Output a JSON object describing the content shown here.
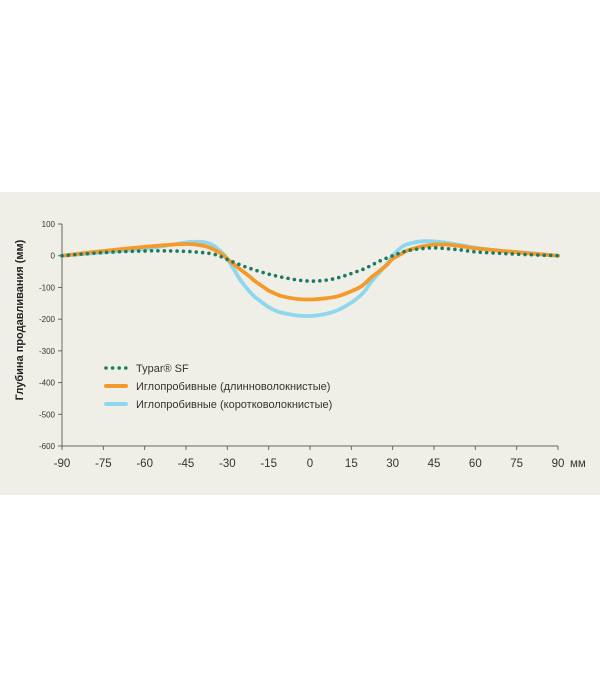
{
  "chart_data": {
    "type": "line",
    "ylabel": "Глубина продавливания (мм)",
    "xlabel": "",
    "x_unit": "мм",
    "xlim": [
      -90,
      90
    ],
    "ylim": [
      -600,
      100
    ],
    "x_ticks": [
      "-90",
      "-75",
      "-60",
      "-45",
      "-30",
      "-15",
      "0",
      "15",
      "30",
      "45",
      "60",
      "75",
      "90"
    ],
    "y_ticks": [
      "100",
      "0",
      "-100",
      "-200",
      "-300",
      "-400",
      "-500",
      "-600"
    ],
    "grid": false,
    "legend_position": "bottom-left",
    "background": "#efefe7",
    "series": [
      {
        "name": "Typar® SF",
        "style": "dotted",
        "color": "#1a7a63",
        "x": [
          -90,
          -75,
          -60,
          -50,
          -42,
          -35,
          -30,
          -25,
          -20,
          -15,
          -10,
          -5,
          0,
          5,
          10,
          15,
          20,
          25,
          30,
          35,
          40,
          45,
          50,
          55,
          60,
          70,
          80,
          90
        ],
        "y": [
          0,
          10,
          15,
          15,
          12,
          5,
          -12,
          -30,
          -45,
          -58,
          -68,
          -76,
          -80,
          -78,
          -70,
          -56,
          -40,
          -18,
          0,
          15,
          22,
          25,
          22,
          18,
          12,
          7,
          3,
          0
        ]
      },
      {
        "name": "Иглопробивные (длинноволокнистые)",
        "style": "solid",
        "color": "#f39a2b",
        "x": [
          -90,
          -75,
          -60,
          -50,
          -45,
          -42,
          -38,
          -35,
          -32,
          -30,
          -28,
          -25,
          -22,
          -20,
          -17,
          -15,
          -12,
          -10,
          -5,
          0,
          5,
          10,
          15,
          18,
          20,
          22,
          25,
          28,
          30,
          33,
          35,
          40,
          45,
          50,
          55,
          60,
          70,
          80,
          90
        ],
        "y": [
          0,
          15,
          28,
          35,
          37,
          36,
          30,
          20,
          5,
          -10,
          -25,
          -45,
          -65,
          -80,
          -98,
          -110,
          -122,
          -128,
          -136,
          -138,
          -135,
          -128,
          -112,
          -100,
          -87,
          -70,
          -50,
          -28,
          -10,
          5,
          15,
          28,
          35,
          35,
          30,
          23,
          15,
          7,
          0
        ]
      },
      {
        "name": "Иглопробивные (коротковолокнистые)",
        "style": "solid",
        "color": "#8fd6ef",
        "x": [
          -90,
          -75,
          -60,
          -50,
          -45,
          -42,
          -38,
          -35,
          -32,
          -30,
          -28,
          -25,
          -22,
          -20,
          -17,
          -15,
          -12,
          -10,
          -5,
          0,
          5,
          10,
          15,
          18,
          20,
          22,
          25,
          28,
          30,
          33,
          35,
          40,
          45,
          50,
          55,
          60,
          70,
          80,
          90
        ],
        "y": [
          0,
          10,
          22,
          35,
          42,
          44,
          42,
          32,
          10,
          -10,
          -38,
          -80,
          -112,
          -130,
          -150,
          -162,
          -175,
          -180,
          -188,
          -190,
          -185,
          -172,
          -148,
          -128,
          -110,
          -85,
          -55,
          -25,
          0,
          25,
          35,
          45,
          45,
          40,
          33,
          25,
          15,
          8,
          0
        ]
      }
    ]
  }
}
